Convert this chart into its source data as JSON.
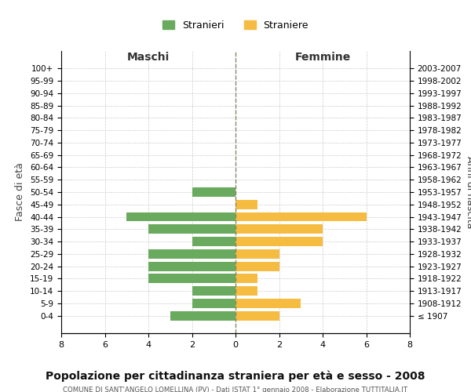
{
  "age_groups": [
    "100+",
    "95-99",
    "90-94",
    "85-89",
    "80-84",
    "75-79",
    "70-74",
    "65-69",
    "60-64",
    "55-59",
    "50-54",
    "45-49",
    "40-44",
    "35-39",
    "30-34",
    "25-29",
    "20-24",
    "15-19",
    "10-14",
    "5-9",
    "0-4"
  ],
  "birth_years": [
    "≤ 1907",
    "1908-1912",
    "1913-1917",
    "1918-1922",
    "1923-1927",
    "1928-1932",
    "1933-1937",
    "1938-1942",
    "1943-1947",
    "1948-1952",
    "1953-1957",
    "1958-1962",
    "1963-1967",
    "1968-1972",
    "1973-1977",
    "1978-1982",
    "1983-1987",
    "1988-1992",
    "1993-1997",
    "1998-2002",
    "2003-2007"
  ],
  "maschi": [
    0,
    0,
    0,
    0,
    0,
    0,
    0,
    0,
    0,
    0,
    2,
    0,
    5,
    4,
    2,
    4,
    4,
    4,
    2,
    2,
    3
  ],
  "femmine": [
    0,
    0,
    0,
    0,
    0,
    0,
    0,
    0,
    0,
    0,
    0,
    1,
    6,
    4,
    4,
    2,
    2,
    1,
    1,
    3,
    2
  ],
  "maschi_color": "#6aaa5e",
  "femmine_color": "#f5bc41",
  "center_line_color": "#888860",
  "grid_color": "#cccccc",
  "background_color": "#ffffff",
  "title": "Popolazione per cittadinanza straniera per età e sesso - 2008",
  "subtitle": "COMUNE DI SANT'ANGELO LOMELLINA (PV) - Dati ISTAT 1° gennaio 2008 - Elaborazione TUTTITALIA.IT",
  "ylabel_left": "Fasce di età",
  "ylabel_right": "Anni di nascita",
  "xlabel_maschi": "Maschi",
  "xlabel_femmine": "Femmine",
  "legend_stranieri": "Stranieri",
  "legend_straniere": "Straniere",
  "xlim": 8,
  "bar_height": 0.75
}
